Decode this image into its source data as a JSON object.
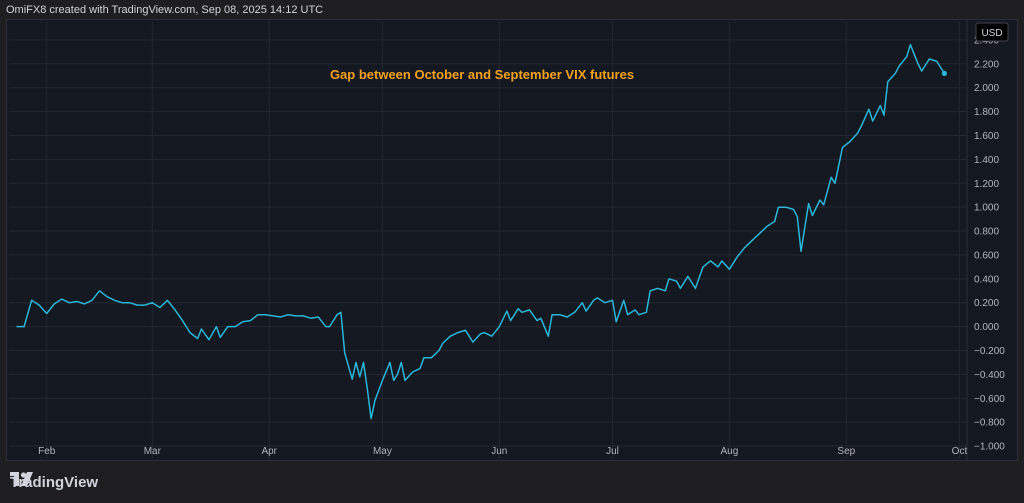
{
  "header": {
    "credit": "OmiFX8 created with TradingView.com, Sep 08, 2025 14:12 UTC"
  },
  "footer": {
    "brand": "TradingView"
  },
  "colors": {
    "line": "#29b6d8",
    "annotation": "#f7a21b",
    "background": "#141821",
    "grid": "#232733"
  },
  "chart_data": {
    "type": "line",
    "title": "Gap between October and September VIX futures",
    "currency": "USD",
    "grid": true,
    "ylim": [
      -1.1,
      2.55
    ],
    "y_ticks": [
      2.4,
      2.2,
      2.0,
      1.8,
      1.6,
      1.4,
      1.2,
      1.0,
      0.8,
      0.6,
      0.4,
      0.2,
      0.0,
      -0.2,
      -0.4,
      -0.6,
      -0.8,
      -1.0
    ],
    "y_tick_labels": [
      "2.400",
      "2.200",
      "2.000",
      "1.800",
      "1.600",
      "1.400",
      "1.200",
      "1.000",
      "0.800",
      "0.600",
      "0.400",
      "0.200",
      "0.000",
      "−0.200",
      "−0.400",
      "−0.600",
      "−0.800",
      "−1.000"
    ],
    "x_ticks": [
      {
        "label": "Feb",
        "date": "2025-02-01"
      },
      {
        "label": "Mar",
        "date": "2025-03-01"
      },
      {
        "label": "Apr",
        "date": "2025-04-01"
      },
      {
        "label": "May",
        "date": "2025-05-01"
      },
      {
        "label": "Jun",
        "date": "2025-06-01"
      },
      {
        "label": "Jul",
        "date": "2025-07-01"
      },
      {
        "label": "Aug",
        "date": "2025-08-01"
      },
      {
        "label": "Sep",
        "date": "2025-09-01"
      },
      {
        "label": "Oct",
        "date": "2025-10-01"
      }
    ],
    "x_range": [
      "2025-01-22",
      "2025-10-03"
    ],
    "series": [
      {
        "points": [
          [
            "2025-01-24",
            0.0
          ],
          [
            "2025-01-26",
            0.0
          ],
          [
            "2025-01-28",
            0.22
          ],
          [
            "2025-01-30",
            0.18
          ],
          [
            "2025-02-01",
            0.11
          ],
          [
            "2025-02-03",
            0.19
          ],
          [
            "2025-02-05",
            0.23
          ],
          [
            "2025-02-07",
            0.2
          ],
          [
            "2025-02-09",
            0.21
          ],
          [
            "2025-02-11",
            0.19
          ],
          [
            "2025-02-13",
            0.22
          ],
          [
            "2025-02-15",
            0.3
          ],
          [
            "2025-02-17",
            0.25
          ],
          [
            "2025-02-19",
            0.22
          ],
          [
            "2025-02-21",
            0.2
          ],
          [
            "2025-02-23",
            0.2
          ],
          [
            "2025-02-25",
            0.18
          ],
          [
            "2025-02-27",
            0.18
          ],
          [
            "2025-03-01",
            0.2
          ],
          [
            "2025-03-03",
            0.16
          ],
          [
            "2025-03-05",
            0.22
          ],
          [
            "2025-03-07",
            0.14
          ],
          [
            "2025-03-09",
            0.05
          ],
          [
            "2025-03-11",
            -0.05
          ],
          [
            "2025-03-13",
            -0.1
          ],
          [
            "2025-03-14",
            -0.02
          ],
          [
            "2025-03-16",
            -0.11
          ],
          [
            "2025-03-18",
            0.0
          ],
          [
            "2025-03-19",
            -0.09
          ],
          [
            "2025-03-21",
            0.0
          ],
          [
            "2025-03-23",
            0.0
          ],
          [
            "2025-03-25",
            0.04
          ],
          [
            "2025-03-27",
            0.05
          ],
          [
            "2025-03-29",
            0.1
          ],
          [
            "2025-03-31",
            0.1
          ],
          [
            "2025-04-02",
            0.09
          ],
          [
            "2025-04-04",
            0.08
          ],
          [
            "2025-04-06",
            0.1
          ],
          [
            "2025-04-08",
            0.09
          ],
          [
            "2025-04-10",
            0.09
          ],
          [
            "2025-04-12",
            0.07
          ],
          [
            "2025-04-14",
            0.08
          ],
          [
            "2025-04-16",
            0.0
          ],
          [
            "2025-04-17",
            0.0
          ],
          [
            "2025-04-19",
            0.1
          ],
          [
            "2025-04-20",
            0.12
          ],
          [
            "2025-04-21",
            -0.22
          ],
          [
            "2025-04-23",
            -0.44
          ],
          [
            "2025-04-24",
            -0.3
          ],
          [
            "2025-04-25",
            -0.42
          ],
          [
            "2025-04-26",
            -0.3
          ],
          [
            "2025-04-27",
            -0.52
          ],
          [
            "2025-04-28",
            -0.77
          ],
          [
            "2025-04-29",
            -0.62
          ],
          [
            "2025-05-01",
            -0.45
          ],
          [
            "2025-05-03",
            -0.3
          ],
          [
            "2025-05-04",
            -0.45
          ],
          [
            "2025-05-05",
            -0.4
          ],
          [
            "2025-05-06",
            -0.3
          ],
          [
            "2025-05-07",
            -0.45
          ],
          [
            "2025-05-09",
            -0.38
          ],
          [
            "2025-05-11",
            -0.35
          ],
          [
            "2025-05-12",
            -0.26
          ],
          [
            "2025-05-14",
            -0.26
          ],
          [
            "2025-05-16",
            -0.2
          ],
          [
            "2025-05-17",
            -0.14
          ],
          [
            "2025-05-19",
            -0.08
          ],
          [
            "2025-05-21",
            -0.05
          ],
          [
            "2025-05-23",
            -0.03
          ],
          [
            "2025-05-25",
            -0.13
          ],
          [
            "2025-05-27",
            -0.06
          ],
          [
            "2025-05-28",
            -0.05
          ],
          [
            "2025-05-30",
            -0.08
          ],
          [
            "2025-06-01",
            0.0
          ],
          [
            "2025-06-03",
            0.13
          ],
          [
            "2025-06-04",
            0.05
          ],
          [
            "2025-06-06",
            0.15
          ],
          [
            "2025-06-07",
            0.12
          ],
          [
            "2025-06-09",
            0.14
          ],
          [
            "2025-06-11",
            0.05
          ],
          [
            "2025-06-12",
            0.07
          ],
          [
            "2025-06-14",
            -0.08
          ],
          [
            "2025-06-15",
            0.1
          ],
          [
            "2025-06-17",
            0.1
          ],
          [
            "2025-06-19",
            0.08
          ],
          [
            "2025-06-21",
            0.12
          ],
          [
            "2025-06-23",
            0.2
          ],
          [
            "2025-06-24",
            0.13
          ],
          [
            "2025-06-26",
            0.22
          ],
          [
            "2025-06-27",
            0.24
          ],
          [
            "2025-06-29",
            0.2
          ],
          [
            "2025-07-01",
            0.22
          ],
          [
            "2025-07-02",
            0.04
          ],
          [
            "2025-07-04",
            0.22
          ],
          [
            "2025-07-05",
            0.1
          ],
          [
            "2025-07-07",
            0.14
          ],
          [
            "2025-07-08",
            0.1
          ],
          [
            "2025-07-10",
            0.12
          ],
          [
            "2025-07-11",
            0.3
          ],
          [
            "2025-07-13",
            0.32
          ],
          [
            "2025-07-15",
            0.3
          ],
          [
            "2025-07-16",
            0.4
          ],
          [
            "2025-07-18",
            0.38
          ],
          [
            "2025-07-19",
            0.32
          ],
          [
            "2025-07-21",
            0.42
          ],
          [
            "2025-07-23",
            0.32
          ],
          [
            "2025-07-25",
            0.5
          ],
          [
            "2025-07-27",
            0.55
          ],
          [
            "2025-07-29",
            0.5
          ],
          [
            "2025-07-30",
            0.55
          ],
          [
            "2025-08-01",
            0.48
          ],
          [
            "2025-08-03",
            0.58
          ],
          [
            "2025-08-05",
            0.66
          ],
          [
            "2025-08-07",
            0.72
          ],
          [
            "2025-08-09",
            0.78
          ],
          [
            "2025-08-11",
            0.84
          ],
          [
            "2025-08-13",
            0.88
          ],
          [
            "2025-08-14",
            1.0
          ],
          [
            "2025-08-16",
            1.0
          ],
          [
            "2025-08-18",
            0.98
          ],
          [
            "2025-08-19",
            0.92
          ],
          [
            "2025-08-20",
            0.63
          ],
          [
            "2025-08-22",
            1.03
          ],
          [
            "2025-08-23",
            0.93
          ],
          [
            "2025-08-25",
            1.06
          ],
          [
            "2025-08-26",
            1.02
          ],
          [
            "2025-08-28",
            1.25
          ],
          [
            "2025-08-29",
            1.2
          ],
          [
            "2025-08-31",
            1.5
          ],
          [
            "2025-09-02",
            1.55
          ],
          [
            "2025-09-04",
            1.62
          ],
          [
            "2025-09-05",
            1.68
          ],
          [
            "2025-09-07",
            1.82
          ],
          [
            "2025-09-08",
            1.72
          ],
          [
            "2025-09-10",
            1.85
          ],
          [
            "2025-09-11",
            1.77
          ],
          [
            "2025-09-12",
            2.05
          ],
          [
            "2025-09-14",
            2.12
          ],
          [
            "2025-09-15",
            2.18
          ],
          [
            "2025-09-17",
            2.26
          ],
          [
            "2025-09-18",
            2.36
          ],
          [
            "2025-09-20",
            2.2
          ],
          [
            "2025-09-21",
            2.14
          ],
          [
            "2025-09-23",
            2.24
          ],
          [
            "2025-09-25",
            2.22
          ],
          [
            "2025-09-26",
            2.17
          ],
          [
            "2025-09-27",
            2.12
          ]
        ]
      }
    ]
  }
}
